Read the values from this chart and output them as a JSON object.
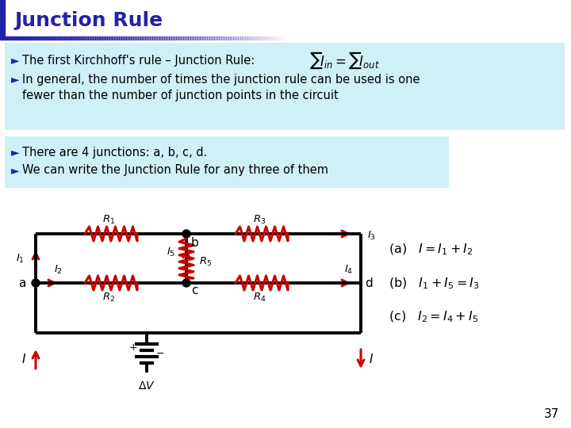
{
  "title": "Junction Rule",
  "title_color": "#2222aa",
  "title_bar_color": "#ffffff",
  "left_accent_color": "#2222aa",
  "gradient_line_color": "#2222aa",
  "box1_bg": "#d0f0f8",
  "box2_bg": "#d0f0f8",
  "text_color": "#000000",
  "circuit_red": "#cc0000",
  "circuit_black": "#000000",
  "bg_color": "#ffffff",
  "page_num": "37",
  "eq_a": "(a)   $I = I_1 + I_2$",
  "eq_b": "(b)   $I_1 + I_5 = I_3$",
  "eq_c": "(c)   $I_2 = I_4 + I_5$"
}
